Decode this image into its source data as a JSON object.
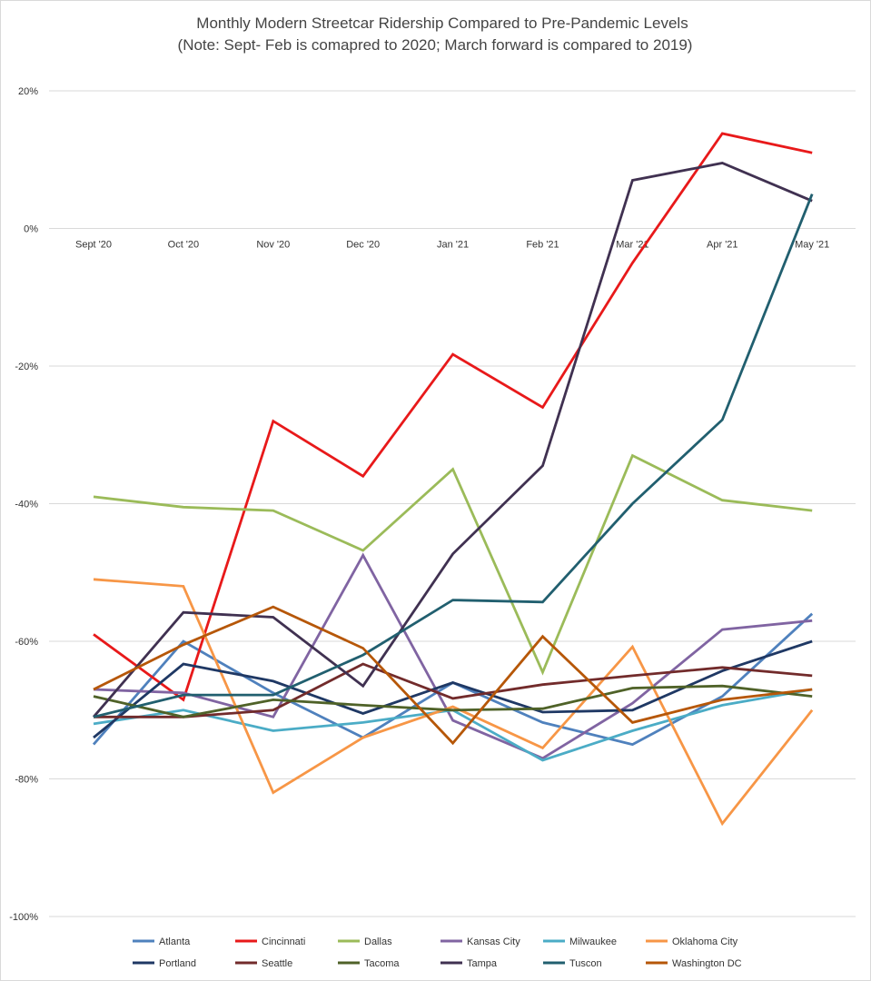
{
  "chart_data": {
    "type": "line",
    "title": "Monthly Modern Streetcar Ridership Compared to Pre-Pandemic Levels",
    "subtitle": "(Note: Sept- Feb is comapred to 2020; March forward is compared to 2019)",
    "xlabel": "",
    "ylabel": "",
    "ylim": [
      -100,
      20
    ],
    "yticks": [
      20,
      0,
      -20,
      -40,
      -60,
      -80,
      -100
    ],
    "ytick_labels": [
      "20%",
      "0%",
      "-20%",
      "-40%",
      "-60%",
      "-80%",
      "-100%"
    ],
    "grid": true,
    "legend_position": "bottom",
    "categories": [
      "Sept '20",
      "Oct '20",
      "Nov '20",
      "Dec '20",
      "Jan '21",
      "Feb '21",
      "Mar '21",
      "Apr '21",
      "May '21"
    ],
    "series": [
      {
        "name": "Atlanta",
        "color": "#4F81BD",
        "values": [
          -75,
          -60,
          -67.5,
          -74,
          -66,
          -71.8,
          -75,
          -68,
          -56
        ]
      },
      {
        "name": "Cincinnati",
        "color": "#E8191A",
        "values": [
          -59,
          -68.5,
          -28,
          -36,
          -18.3,
          -26,
          -5,
          13.8,
          11
        ]
      },
      {
        "name": "Dallas",
        "color": "#9BBB59",
        "values": [
          -39,
          -40.5,
          -41,
          -46.8,
          -35,
          -64.5,
          -33,
          -39.5,
          -41
        ]
      },
      {
        "name": "Kansas City",
        "color": "#8064A2",
        "values": [
          -67,
          -67.5,
          -71,
          -47.5,
          -71.5,
          -77,
          -69,
          -58.3,
          -57
        ]
      },
      {
        "name": "Milwaukee",
        "color": "#4BACC6",
        "values": [
          -72,
          -70,
          -73,
          -71.8,
          -70,
          -77.3,
          -73,
          -69.3,
          -67
        ]
      },
      {
        "name": "Oklahoma City",
        "color": "#F79646",
        "values": [
          -51,
          -52,
          -82,
          -74,
          -69.5,
          -75.5,
          -60.8,
          -86.5,
          -70
        ]
      },
      {
        "name": "Portland",
        "color": "#1F3864",
        "values": [
          -74,
          -63.3,
          -65.8,
          -70.5,
          -66,
          -70.3,
          -70,
          -64.3,
          -60
        ]
      },
      {
        "name": "Seattle",
        "color": "#722B2B",
        "values": [
          -71,
          -71,
          -70,
          -63.3,
          -68.3,
          -66.3,
          -65,
          -63.8,
          -65
        ]
      },
      {
        "name": "Tacoma",
        "color": "#4F6228",
        "values": [
          -68,
          -71,
          -68.5,
          -69.3,
          -70,
          -69.8,
          -66.8,
          -66.5,
          -68
        ]
      },
      {
        "name": "Tampa",
        "color": "#403151",
        "values": [
          -71,
          -55.8,
          -56.5,
          -66.5,
          -47.3,
          -34.5,
          7,
          9.5,
          4
        ]
      },
      {
        "name": "Tuscon",
        "color": "#215F6F",
        "values": [
          -71,
          -67.8,
          -67.8,
          -62,
          -54,
          -54.3,
          -40,
          -27.8,
          5
        ]
      },
      {
        "name": "Washington DC",
        "color": "#B65708",
        "values": [
          -67,
          -60.5,
          -55,
          -61,
          -74.8,
          -59.3,
          -71.8,
          -68.5,
          -67
        ]
      }
    ]
  }
}
